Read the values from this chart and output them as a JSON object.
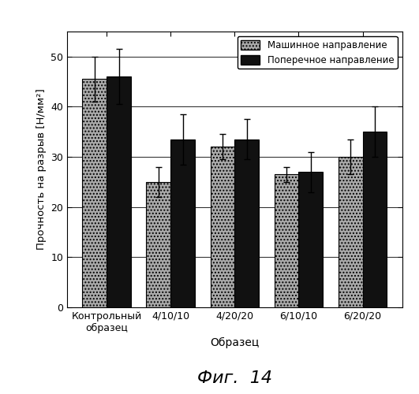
{
  "categories": [
    "Контрольный\nобразец",
    "4/10/10",
    "4/20/20",
    "6/10/10",
    "6/20/20"
  ],
  "machine_values": [
    45.5,
    25.0,
    32.0,
    26.5,
    30.0
  ],
  "cross_values": [
    46.0,
    33.5,
    33.5,
    27.0,
    35.0
  ],
  "machine_errors": [
    4.5,
    3.0,
    2.5,
    1.5,
    3.5
  ],
  "cross_errors": [
    5.5,
    5.0,
    4.0,
    4.0,
    5.0
  ],
  "ylabel": "Прочность на разрыв [Н/мм²]",
  "xlabel": "Образец",
  "fig_label": "Фиг.  14",
  "legend_machine": "Машинное направление",
  "legend_cross": "Поперечное направление",
  "ylim": [
    0,
    55
  ],
  "yticks": [
    0,
    10,
    20,
    30,
    40,
    50
  ],
  "bar_width": 0.38,
  "background_color": "#ffffff"
}
